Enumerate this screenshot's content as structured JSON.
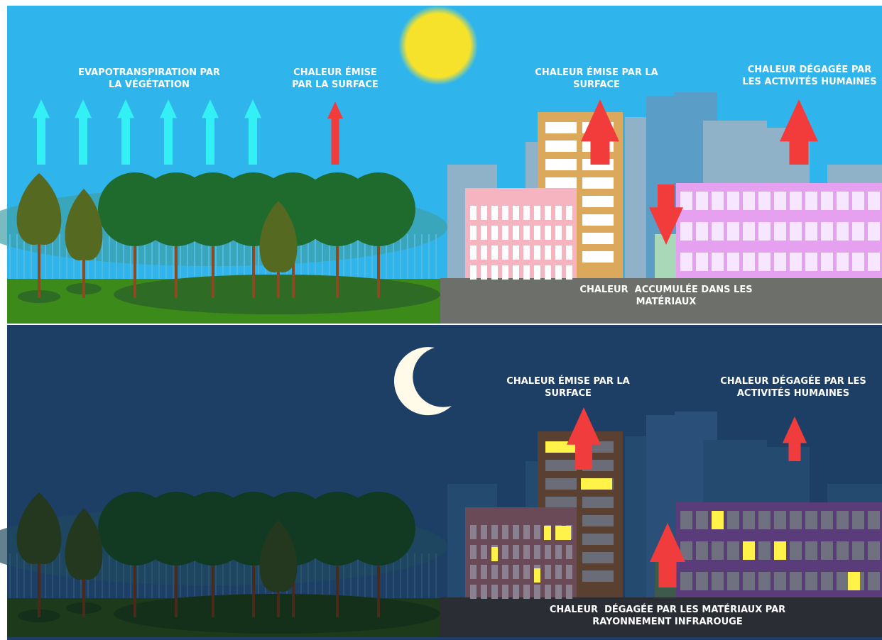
{
  "day": {
    "labels": [
      {
        "lines": [
          "EVAPOTRANSPIRATION PAR",
          "LA VÉGÉTATION"
        ]
      },
      {
        "lines": [
          "CHALEUR ÉMISE",
          "PAR LA SURFACE"
        ]
      },
      {
        "lines": [
          "CHALEUR ÉMISE PAR LA",
          "SURFACE"
        ]
      },
      {
        "lines": [
          "CHALEUR DÉGAGÉE PAR",
          "LES ACTIVITÉS HUMAINES"
        ]
      },
      {
        "lines": [
          "CHALEUR  ACCUMULÉE DANS LES",
          "MATÉRIAUX"
        ]
      }
    ]
  },
  "night": {
    "labels": [
      {
        "lines": [
          "CHALEUR ÉMISE PAR LA",
          "SURFACE"
        ]
      },
      {
        "lines": [
          "CHALEUR DÉGAGÉE PAR LES",
          "ACTIVITÉS HUMAINES"
        ]
      },
      {
        "lines": [
          "CHALEUR  DÉGAGÉE PAR LES MATÉRIAUX PAR",
          "RAYONNEMENT INFRAROUGE"
        ]
      }
    ]
  }
}
